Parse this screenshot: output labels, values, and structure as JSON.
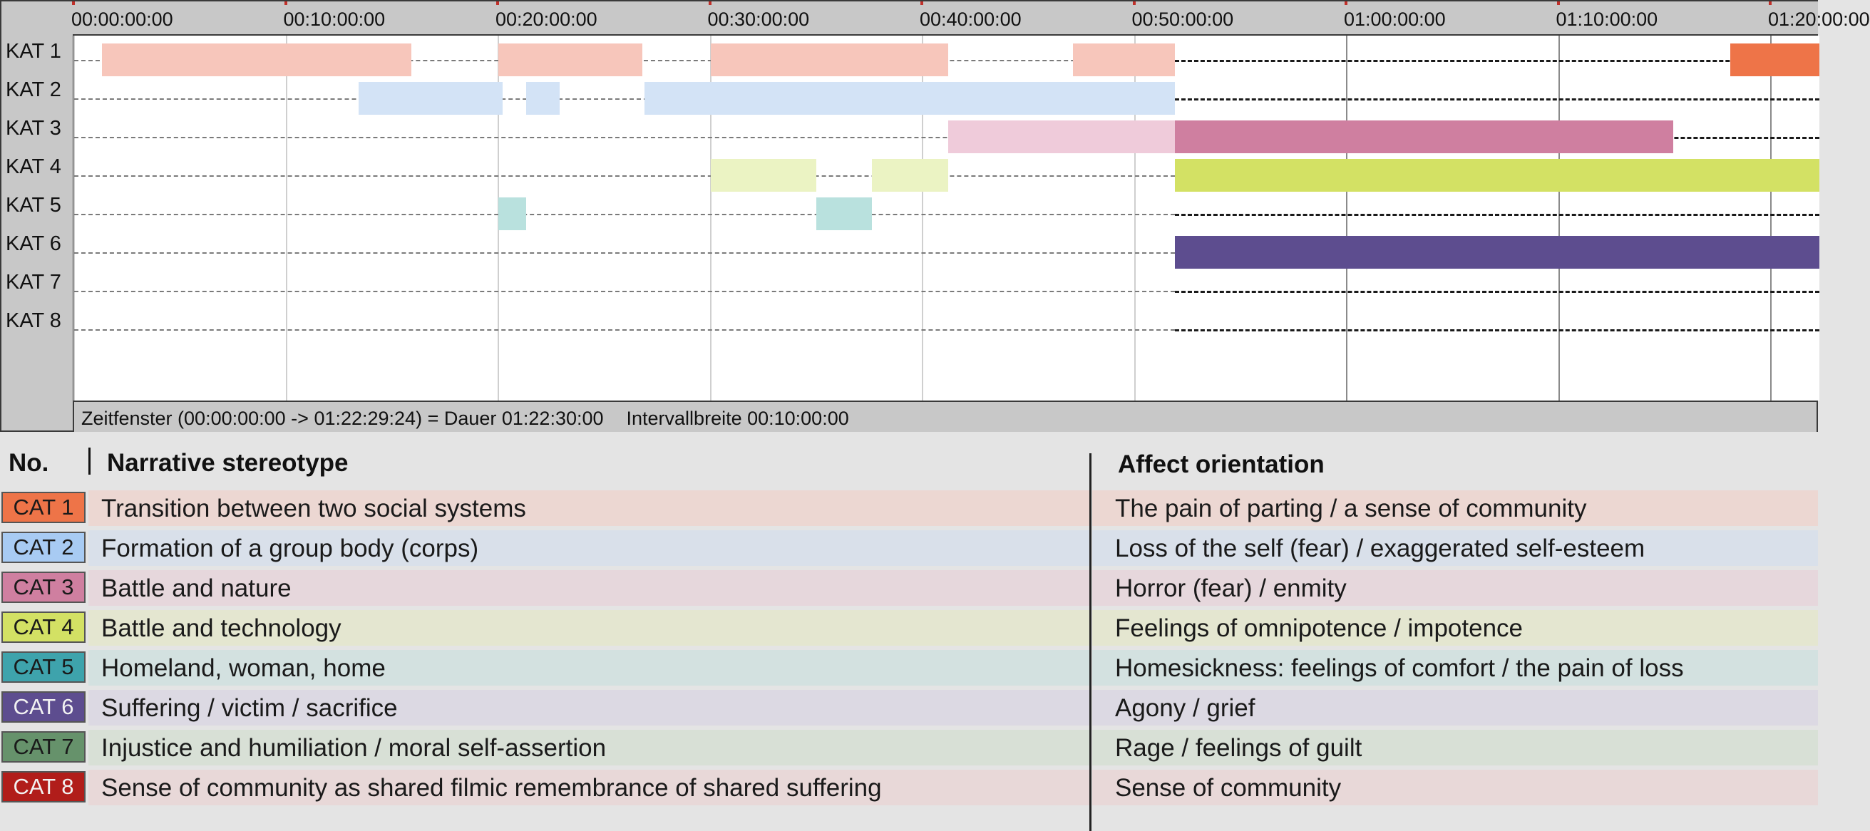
{
  "chart_data": {
    "type": "timeline",
    "x_unit": "hh:mm:ss:ff",
    "ticks": [
      "00:00:00:00",
      "00:10:00:00",
      "00:20:00:00",
      "00:30:00:00",
      "00:40:00:00",
      "00:50:00:00",
      "01:00:00:00",
      "01:10:00:00",
      "01:20:00:00"
    ],
    "tick_minutes": [
      0,
      10,
      20,
      30,
      40,
      50,
      60,
      70,
      80
    ],
    "xlim_minutes": [
      0,
      82.5
    ],
    "row_labels": [
      "KAT 1",
      "KAT 2",
      "KAT 3",
      "KAT 4",
      "KAT 5",
      "KAT 6",
      "KAT 7",
      "KAT 8"
    ],
    "series": [
      {
        "name": "KAT 1",
        "segments_minutes": [
          [
            1.3,
            15.9
          ],
          [
            20.0,
            26.8
          ],
          [
            30.0,
            41.2
          ],
          [
            47.1,
            51.9
          ],
          [
            78.1,
            82.5
          ]
        ]
      },
      {
        "name": "KAT 2",
        "segments_minutes": [
          [
            13.4,
            20.2
          ],
          [
            21.3,
            22.9
          ],
          [
            26.9,
            51.9
          ]
        ]
      },
      {
        "name": "KAT 3",
        "segments_minutes": [
          [
            41.2,
            51.9
          ],
          [
            51.9,
            75.4
          ]
        ]
      },
      {
        "name": "KAT 4",
        "segments_minutes": [
          [
            30.0,
            35.0
          ],
          [
            37.6,
            41.2
          ],
          [
            51.9,
            82.5
          ]
        ]
      },
      {
        "name": "KAT 5",
        "segments_minutes": [
          [
            20.0,
            21.3
          ],
          [
            35.0,
            37.6
          ]
        ]
      },
      {
        "name": "KAT 6",
        "segments_minutes": [
          [
            51.9,
            82.5
          ]
        ]
      },
      {
        "name": "KAT 7",
        "segments_minutes": []
      },
      {
        "name": "KAT 8",
        "segments_minutes": []
      }
    ],
    "status_window": "Zeitfenster (00:00:00:00 -> 01:22:29:24) = Dauer 01:22:30:00",
    "status_interval": "Intervallbreite 00:10:00:00"
  },
  "colors": {
    "KAT 1": {
      "light": "#f7c6bb",
      "full": "#ee7448"
    },
    "KAT 2": {
      "light": "#d3e3f6",
      "full": "#a8cbf3"
    },
    "KAT 3": {
      "light": "#efcbda",
      "full": "#cf7fa0"
    },
    "KAT 4": {
      "light": "#ebf3c3",
      "full": "#d3e164"
    },
    "KAT 5": {
      "light": "#b9e1de",
      "full": "#3ea3ac"
    },
    "KAT 6": {
      "light": "#c7bfe0",
      "full": "#5d4d8f"
    },
    "KAT 7": {
      "light": "#c9dcc4",
      "full": "#66926b"
    },
    "KAT 8": {
      "light": "#f1c5c2",
      "full": "#b11d1a"
    }
  },
  "legend": {
    "header_no": "No.",
    "header_stereotype": "Narrative stereotype",
    "header_affect": "Affect orientation",
    "rows": [
      {
        "cat": "CAT 1",
        "stereotype": "Transition between two social systems",
        "affect": "The pain of parting / a sense of community",
        "badge": "#ee7448",
        "band": "#ecd7d2"
      },
      {
        "cat": "CAT 2",
        "stereotype": "Formation of a group body (corps)",
        "affect": "Loss of the self (fear) / exaggerated self-esteem",
        "badge": "#a8cbf3",
        "band": "#d9e0ea"
      },
      {
        "cat": "CAT 3",
        "stereotype": "Battle and nature",
        "affect": "Horror (fear) / enmity",
        "badge": "#cf7fa0",
        "band": "#e6d7dc"
      },
      {
        "cat": "CAT 4",
        "stereotype": "Battle and technology",
        "affect": "Feelings of omnipotence / impotence",
        "badge": "#d3e164",
        "band": "#e4e6d0"
      },
      {
        "cat": "CAT 5",
        "stereotype": "Homeland, woman, home",
        "affect": "Homesickness: feelings of comfort  / the pain of loss",
        "badge": "#3ea3ac",
        "band": "#d3e1e0"
      },
      {
        "cat": "CAT 6",
        "stereotype": "Suffering / victim / sacrifice",
        "affect": "Agony / grief",
        "badge": "#5d4d8f",
        "band": "#dcd9e3"
      },
      {
        "cat": "CAT 7",
        "stereotype": "Injustice and humiliation / moral self-assertion",
        "affect": "Rage / feelings of guilt",
        "badge": "#66926b",
        "band": "#d8e0d6"
      },
      {
        "cat": "CAT 8",
        "stereotype": "Sense of community as shared filmic remembrance of shared suffering",
        "affect": "Sense of community",
        "badge": "#b11d1a",
        "band": "#e8d8d8"
      }
    ]
  }
}
